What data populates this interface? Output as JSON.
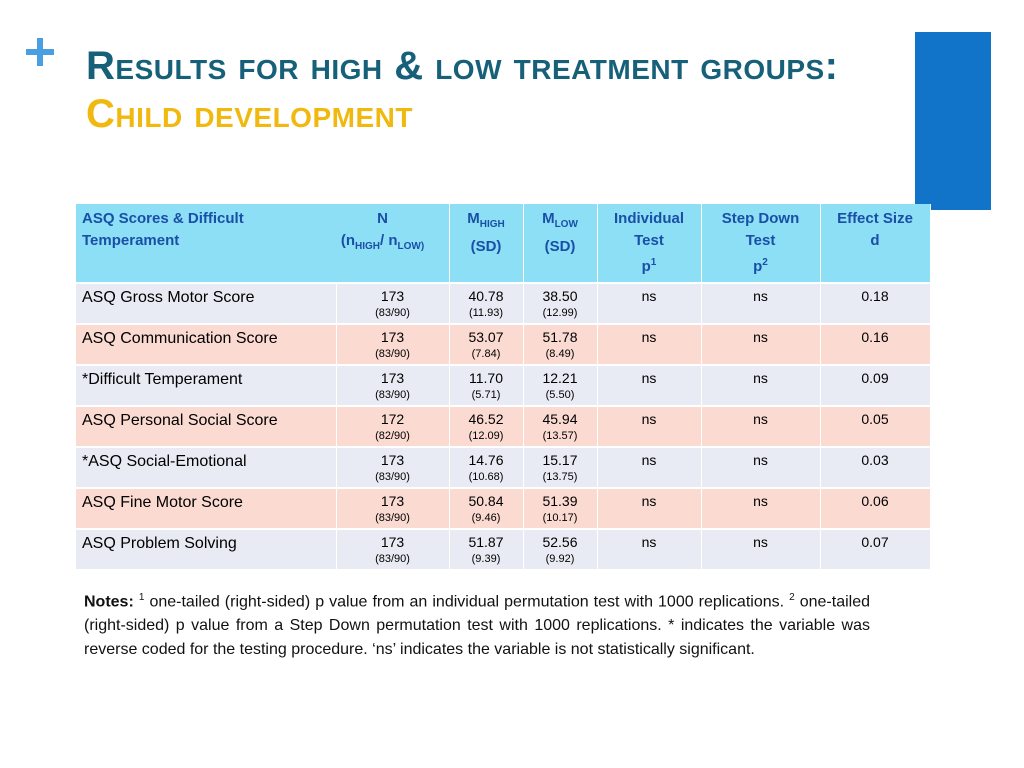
{
  "title": {
    "line1": "Results for high & low treatment groups:",
    "line2": "Child development"
  },
  "colors": {
    "title_line1": "#17607a",
    "title_line2": "#f1b90f",
    "accent_bar": "#1174c8",
    "plus_icon": "#4a9fe0",
    "header_bg": "#8ddff5",
    "header_text": "#1a4fa8",
    "row_odd": "#e8ebf3",
    "row_even": "#fbdad1"
  },
  "table": {
    "headers": {
      "col1": "ASQ Scores & Difficult Temperament",
      "n_main": "N",
      "n_open": "(n",
      "n_high_sub": "HIGH",
      "n_slash": "/ n",
      "n_low_sub": "LOW)",
      "mhigh_main": "M",
      "mhigh_sub": "HIGH",
      "mhigh_sd": "(SD)",
      "mlow_main": "M",
      "mlow_sub": "LOW",
      "mlow_sd": "(SD)",
      "ind_line1": "Individual",
      "ind_line2": "Test",
      "ind_p": "p",
      "ind_sup": "1",
      "step_line1": "Step Down",
      "step_line2": "Test",
      "step_p": "p",
      "step_sup": "2",
      "eff_line1": "Effect Size",
      "eff_line2": "d"
    },
    "rows": [
      {
        "label": "ASQ Gross Motor Score",
        "n": "173",
        "n_split": "(83/90)",
        "mhigh": "40.78",
        "mhigh_sd": "(11.93)",
        "mlow": "38.50",
        "mlow_sd": "(12.99)",
        "ind": "ns",
        "step": "ns",
        "effect": "0.18"
      },
      {
        "label": "ASQ Communication Score",
        "n": "173",
        "n_split": "(83/90)",
        "mhigh": "53.07",
        "mhigh_sd": "(7.84)",
        "mlow": "51.78",
        "mlow_sd": "(8.49)",
        "ind": "ns",
        "step": "ns",
        "effect": "0.16"
      },
      {
        "label": "*Difficult Temperament",
        "n": "173",
        "n_split": "(83/90)",
        "mhigh": "11.70",
        "mhigh_sd": "(5.71)",
        "mlow": "12.21",
        "mlow_sd": "(5.50)",
        "ind": "ns",
        "step": "ns",
        "effect": "0.09"
      },
      {
        "label": "ASQ Personal Social Score",
        "n": "172",
        "n_split": "(82/90)",
        "mhigh": "46.52",
        "mhigh_sd": "(12.09)",
        "mlow": "45.94",
        "mlow_sd": "(13.57)",
        "ind": "ns",
        "step": "ns",
        "effect": "0.05"
      },
      {
        "label": "*ASQ Social-Emotional",
        "n": "173",
        "n_split": "(83/90)",
        "mhigh": "14.76",
        "mhigh_sd": "(10.68)",
        "mlow": "15.17",
        "mlow_sd": "(13.75)",
        "ind": "ns",
        "step": "ns",
        "effect": "0.03"
      },
      {
        "label": "ASQ Fine Motor Score",
        "n": "173",
        "n_split": "(83/90)",
        "mhigh": "50.84",
        "mhigh_sd": "(9.46)",
        "mlow": "51.39",
        "mlow_sd": "(10.17)",
        "ind": "ns",
        "step": "ns",
        "effect": "0.06"
      },
      {
        "label": "ASQ Problem Solving",
        "n": "173",
        "n_split": "(83/90)",
        "mhigh": "51.87",
        "mhigh_sd": "(9.39)",
        "mlow": "52.56",
        "mlow_sd": "(9.92)",
        "ind": "ns",
        "step": "ns",
        "effect": "0.07"
      }
    ]
  },
  "notes": {
    "label": "Notes:",
    "sup1": "1",
    "text1": " one-tailed (right-sided) p value from an individual permutation test with 1000 replications. ",
    "sup2": "2",
    "text2": " one-tailed (right-sided) p value from a Step Down permutation test with 1000 replications. * indicates the variable was reverse coded for the testing procedure.  ‘ns’ indicates the variable is not statistically significant."
  }
}
